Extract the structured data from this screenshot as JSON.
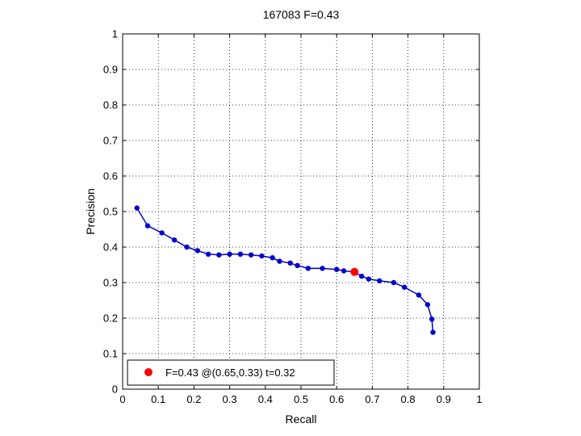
{
  "chart_data": {
    "type": "line",
    "title": "167083 F=0.43",
    "xlabel": "Recall",
    "ylabel": "Precision",
    "xlim": [
      0,
      1
    ],
    "ylim": [
      0,
      1
    ],
    "xticks": [
      "0",
      "0.1",
      "0.2",
      "0.3",
      "0.4",
      "0.5",
      "0.6",
      "0.7",
      "0.8",
      "0.9",
      "1"
    ],
    "yticks": [
      "0",
      "0.1",
      "0.2",
      "0.3",
      "0.4",
      "0.5",
      "0.6",
      "0.7",
      "0.8",
      "0.9",
      "1"
    ],
    "grid": true,
    "legend_position": "bottom-left",
    "series": [
      {
        "color": "#0000cc",
        "marker": "dot",
        "points": [
          [
            0.04,
            0.51
          ],
          [
            0.07,
            0.46
          ],
          [
            0.11,
            0.44
          ],
          [
            0.145,
            0.42
          ],
          [
            0.18,
            0.4
          ],
          [
            0.21,
            0.39
          ],
          [
            0.24,
            0.38
          ],
          [
            0.27,
            0.378
          ],
          [
            0.3,
            0.38
          ],
          [
            0.33,
            0.38
          ],
          [
            0.36,
            0.378
          ],
          [
            0.39,
            0.375
          ],
          [
            0.42,
            0.37
          ],
          [
            0.44,
            0.36
          ],
          [
            0.47,
            0.355
          ],
          [
            0.49,
            0.348
          ],
          [
            0.52,
            0.34
          ],
          [
            0.56,
            0.34
          ],
          [
            0.6,
            0.337
          ],
          [
            0.62,
            0.333
          ],
          [
            0.65,
            0.33
          ],
          [
            0.67,
            0.318
          ],
          [
            0.69,
            0.31
          ],
          [
            0.72,
            0.305
          ],
          [
            0.76,
            0.3
          ],
          [
            0.79,
            0.287
          ],
          [
            0.83,
            0.265
          ],
          [
            0.855,
            0.238
          ],
          [
            0.867,
            0.197
          ],
          [
            0.87,
            0.16
          ]
        ]
      }
    ],
    "highlight": {
      "x": 0.65,
      "y": 0.33,
      "color": "#ff0000",
      "label": "F=0.43 @(0.65,0.33) t=0.32"
    }
  }
}
